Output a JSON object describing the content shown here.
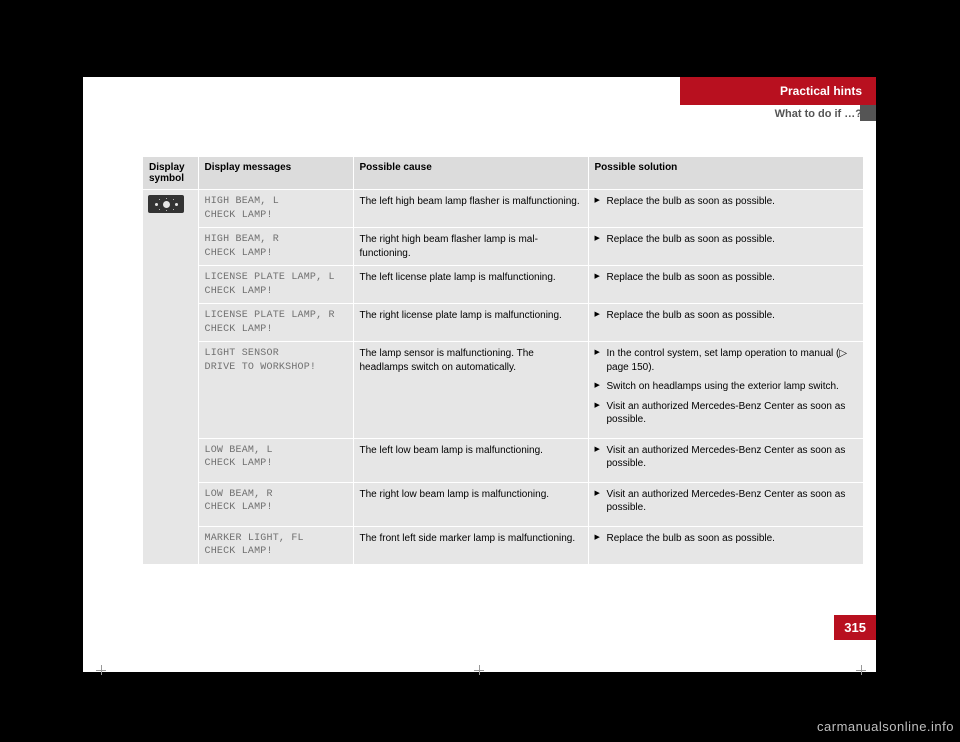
{
  "header": {
    "tab": "Practical hints",
    "subtitle": "What to do if …?"
  },
  "table": {
    "columns": {
      "symbol": "Display symbol",
      "messages": "Display messages",
      "cause": "Possible cause",
      "solution": "Possible solution"
    },
    "rows": [
      {
        "msg": "HIGH BEAM, L\nCHECK LAMP!",
        "cause": "The left high beam lamp flasher is mal­functioning.",
        "sol": [
          "Replace the bulb as soon as possible."
        ]
      },
      {
        "msg": "HIGH BEAM, R\nCHECK LAMP!",
        "cause": "The right high beam flasher lamp is mal­functioning.",
        "sol": [
          "Replace the bulb as soon as possible."
        ]
      },
      {
        "msg": "LICENSE PLATE LAMP, L\nCHECK LAMP!",
        "cause": "The left license plate lamp is malfunction­ing.",
        "sol": [
          "Replace the bulb as soon as possible."
        ]
      },
      {
        "msg": "LICENSE PLATE LAMP, R\nCHECK LAMP!",
        "cause": "The right license plate lamp is malfunc­tioning.",
        "sol": [
          "Replace the bulb as soon as possible."
        ]
      },
      {
        "msg": "LIGHT SENSOR\nDRIVE TO WORKSHOP!",
        "cause": "The lamp sensor is malfunctioning. The headlamps switch on automatically.",
        "sol": [
          "In the control system, set lamp operation to manual (▷ page 150).",
          "Switch on headlamps using the exterior lamp switch.",
          "Visit an authorized Mercedes-Benz Cen­ter as soon as possible."
        ]
      },
      {
        "msg": "LOW BEAM, L\nCHECK LAMP!",
        "cause": "The left low beam lamp is malfunctioning.",
        "sol": [
          "Visit an authorized Mercedes-Benz Cen­ter as soon as possible."
        ]
      },
      {
        "msg": "LOW BEAM, R\nCHECK LAMP!",
        "cause": "The right low beam lamp is malfunction­ing.",
        "sol": [
          "Visit an authorized Mercedes-Benz Cen­ter as soon as possible."
        ]
      },
      {
        "msg": "MARKER LIGHT, FL\nCHECK LAMP!",
        "cause": "The front left side marker lamp is mal­functioning.",
        "sol": [
          "Replace the bulb as soon as possible."
        ]
      }
    ]
  },
  "pageNumber": "315",
  "watermark": "carmanualsonline.info"
}
